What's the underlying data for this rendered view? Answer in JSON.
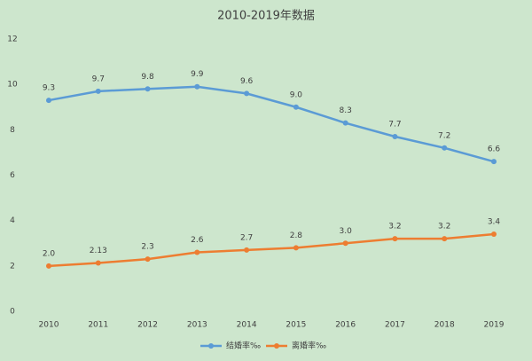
{
  "chart_data": {
    "type": "line",
    "title": "2010-2019年数据",
    "categories": [
      "2010",
      "2011",
      "2012",
      "2013",
      "2014",
      "2015",
      "2016",
      "2017",
      "2018",
      "2019"
    ],
    "series": [
      {
        "name": "结婚率‰",
        "color": "#5b9bd5",
        "values": [
          9.3,
          9.7,
          9.8,
          9.9,
          9.6,
          9.0,
          8.3,
          7.7,
          7.2,
          6.6
        ],
        "value_labels": [
          "9.3",
          "9.7",
          "9.8",
          "9.9",
          "9.6",
          "9.0",
          "8.3",
          "7.7",
          "7.2",
          "6.6"
        ]
      },
      {
        "name": "离婚率‰",
        "color": "#ed7d31",
        "values": [
          2.0,
          2.13,
          2.3,
          2.6,
          2.7,
          2.8,
          3.0,
          3.2,
          3.2,
          3.4
        ],
        "value_labels": [
          "2.0",
          "2.13",
          "2.3",
          "2.6",
          "2.7",
          "2.8",
          "3.0",
          "3.2",
          "3.2",
          "3.4"
        ]
      }
    ],
    "ylim": [
      0,
      12
    ],
    "yticks": [
      0,
      2,
      4,
      6,
      8,
      10,
      12
    ],
    "grid": false,
    "legend": "bottom"
  }
}
